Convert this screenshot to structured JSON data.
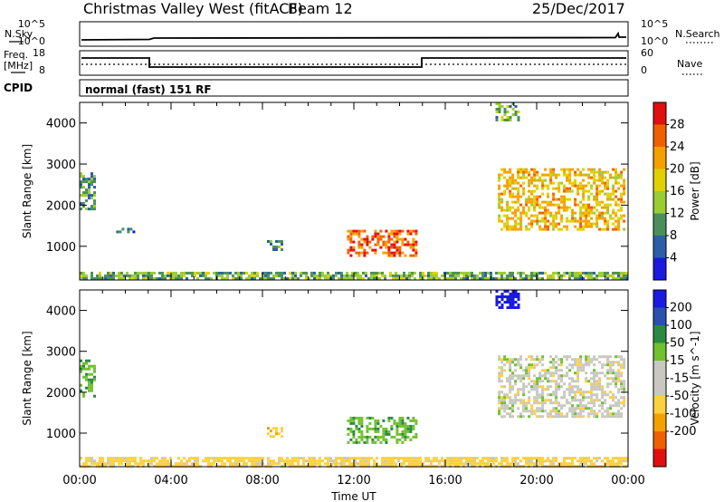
{
  "header": {
    "station": "Christmas Valley West (fitACF)",
    "beam": "Beam 12",
    "date": "25/Dec/2017"
  },
  "summary": {
    "nsky_label": "N.Sky",
    "nsearch_label": "N.Search",
    "freq_label_1": "Freq.",
    "freq_label_2": "[MHz]",
    "nave_label": "Nave",
    "cpid_label": "CPID",
    "cpid_value": "normal (fast) 151 RF",
    "noise_ticks": [
      "10^5",
      "10^0"
    ],
    "freq_ticks": [
      "18",
      "8"
    ],
    "nave_ticks": [
      "60",
      "0"
    ]
  },
  "colors": {
    "power": [
      "#1a1ae0",
      "#2a5fa8",
      "#4a8f5a",
      "#9acd32",
      "#e0d000",
      "#f5a000",
      "#f06000",
      "#e01010"
    ],
    "velocity": [
      "#e01010",
      "#f06000",
      "#f5a000",
      "#ffd040",
      "#c8c8c0",
      "#c8c8c0",
      "#70c030",
      "#2a8a40",
      "#2a50b0",
      "#1a1ae0"
    ]
  },
  "chart_data": [
    {
      "type": "heatmap",
      "title": "",
      "xlabel": "Time UT",
      "ylabel": "Slant Range [km]",
      "x_ticks": [
        "00:00",
        "04:00",
        "08:00",
        "12:00",
        "16:00",
        "20:00",
        "00:00"
      ],
      "y_ticks": [
        "1000",
        "2000",
        "3000",
        "4000"
      ],
      "xlim": [
        0,
        24
      ],
      "ylim": [
        180,
        4500
      ],
      "colorbar_label": "Power [dB]",
      "colorbar_ticks": [
        "4",
        "8",
        "12",
        "16",
        "20",
        "24",
        "28"
      ],
      "colorbar_range": [
        0,
        32
      ],
      "regions": [
        {
          "name": "ground-scatter-band",
          "t": [
            0,
            24
          ],
          "r": [
            200,
            380
          ],
          "value": 12
        },
        {
          "name": "early-echoes",
          "t": [
            0.0,
            0.6
          ],
          "r": [
            1900,
            2800
          ],
          "value": 10
        },
        {
          "name": "early-echoes-2",
          "t": [
            1.6,
            2.4
          ],
          "r": [
            1350,
            1450
          ],
          "value": 6
        },
        {
          "name": "morning-patch",
          "t": [
            8.2,
            8.9
          ],
          "r": [
            950,
            1150
          ],
          "value": 9
        },
        {
          "name": "noon-patch",
          "t": [
            11.7,
            14.7
          ],
          "r": [
            800,
            1400
          ],
          "value": 26
        },
        {
          "name": "high-cluster",
          "t": [
            18.2,
            19.2
          ],
          "r": [
            4100,
            4500
          ],
          "value": 12
        },
        {
          "name": "evening-band",
          "t": [
            18.3,
            23.8
          ],
          "r": [
            1400,
            2900
          ],
          "value": 20
        }
      ]
    },
    {
      "type": "heatmap",
      "title": "",
      "xlabel": "Time UT",
      "ylabel": "Slant Range [km]",
      "x_ticks": [
        "00:00",
        "04:00",
        "08:00",
        "12:00",
        "16:00",
        "20:00",
        "00:00"
      ],
      "y_ticks": [
        "1000",
        "2000",
        "3000",
        "4000"
      ],
      "xlim": [
        0,
        24
      ],
      "ylim": [
        180,
        4500
      ],
      "colorbar_label": "Velocity [m s^-1]",
      "colorbar_ticks": [
        "200",
        "100",
        "50",
        "15",
        "-15",
        "-50",
        "-100",
        "-200"
      ],
      "colorbar_range": [
        -250,
        250
      ],
      "regions": [
        {
          "name": "ground-scatter-band",
          "t": [
            0,
            24
          ],
          "r": [
            200,
            420
          ],
          "value": -30
        },
        {
          "name": "early-echoes",
          "t": [
            0.0,
            0.6
          ],
          "r": [
            1900,
            2800
          ],
          "value": 40
        },
        {
          "name": "morning-patch",
          "t": [
            8.2,
            8.9
          ],
          "r": [
            950,
            1150
          ],
          "value": -40
        },
        {
          "name": "noon-patch",
          "t": [
            11.7,
            14.7
          ],
          "r": [
            800,
            1400
          ],
          "value": 40
        },
        {
          "name": "high-cluster",
          "t": [
            18.2,
            19.2
          ],
          "r": [
            4100,
            4500
          ],
          "value": 220
        },
        {
          "name": "evening-band",
          "t": [
            18.3,
            23.8
          ],
          "r": [
            1400,
            2900
          ],
          "value": 0
        }
      ]
    }
  ]
}
